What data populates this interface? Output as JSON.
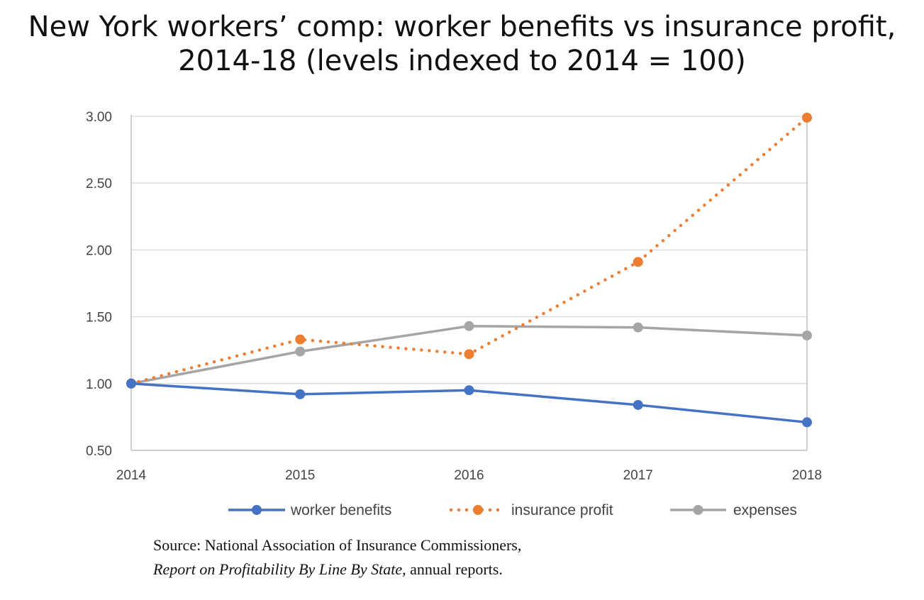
{
  "chart_data": {
    "type": "line",
    "title_line1": "New York workers’ comp: worker benefits vs insurance profit,",
    "title_line2": "2014-18 (levels indexed to 2014 = 100)",
    "xlabel": "",
    "ylabel": "",
    "x": [
      "2014",
      "2015",
      "2016",
      "2017",
      "2018"
    ],
    "ylim": [
      0.5,
      3.0
    ],
    "y_ticks": [
      "0.50",
      "1.00",
      "1.50",
      "2.00",
      "2.50",
      "3.00"
    ],
    "grid": true,
    "legend_position": "bottom",
    "series": [
      {
        "name": "worker benefits",
        "color": "#4472c4",
        "style": "solid",
        "values": [
          1.0,
          0.92,
          0.95,
          0.84,
          0.71
        ]
      },
      {
        "name": "insurance profit",
        "color": "#ed7d31",
        "style": "dotted",
        "values": [
          1.0,
          1.33,
          1.22,
          1.91,
          2.99
        ]
      },
      {
        "name": "expenses",
        "color": "#a5a5a5",
        "style": "solid",
        "values": [
          1.0,
          1.24,
          1.43,
          1.42,
          1.36
        ]
      }
    ]
  },
  "source": {
    "line1": "Source:  National Association of Insurance Commissioners,",
    "line2_italic": "Report on Profitability  By Line By State",
    "line2_rest": ", annual reports."
  }
}
